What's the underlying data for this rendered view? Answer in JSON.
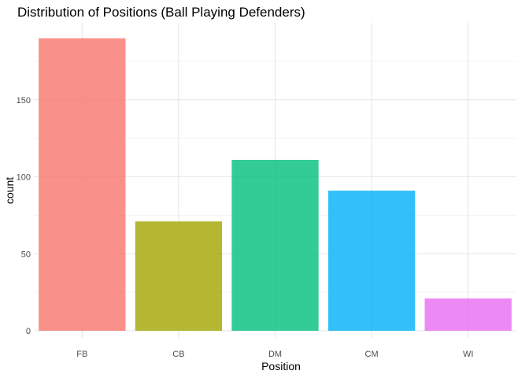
{
  "chart_data": {
    "type": "bar",
    "title": "Distribution of Positions (Ball Playing Defenders)",
    "xlabel": "Position",
    "ylabel": "count",
    "categories": [
      "FB",
      "CB",
      "DM",
      "CM",
      "WI"
    ],
    "values": [
      190,
      71,
      111,
      91,
      21
    ],
    "colors": [
      "#F8766D",
      "#A3A500",
      "#00BF7D",
      "#00B0F6",
      "#E76BF3"
    ],
    "bar_opacity": 0.8,
    "ylim": [
      0,
      196
    ],
    "yticks": [
      0,
      50,
      100,
      150
    ],
    "grid": true,
    "legend": "none"
  }
}
